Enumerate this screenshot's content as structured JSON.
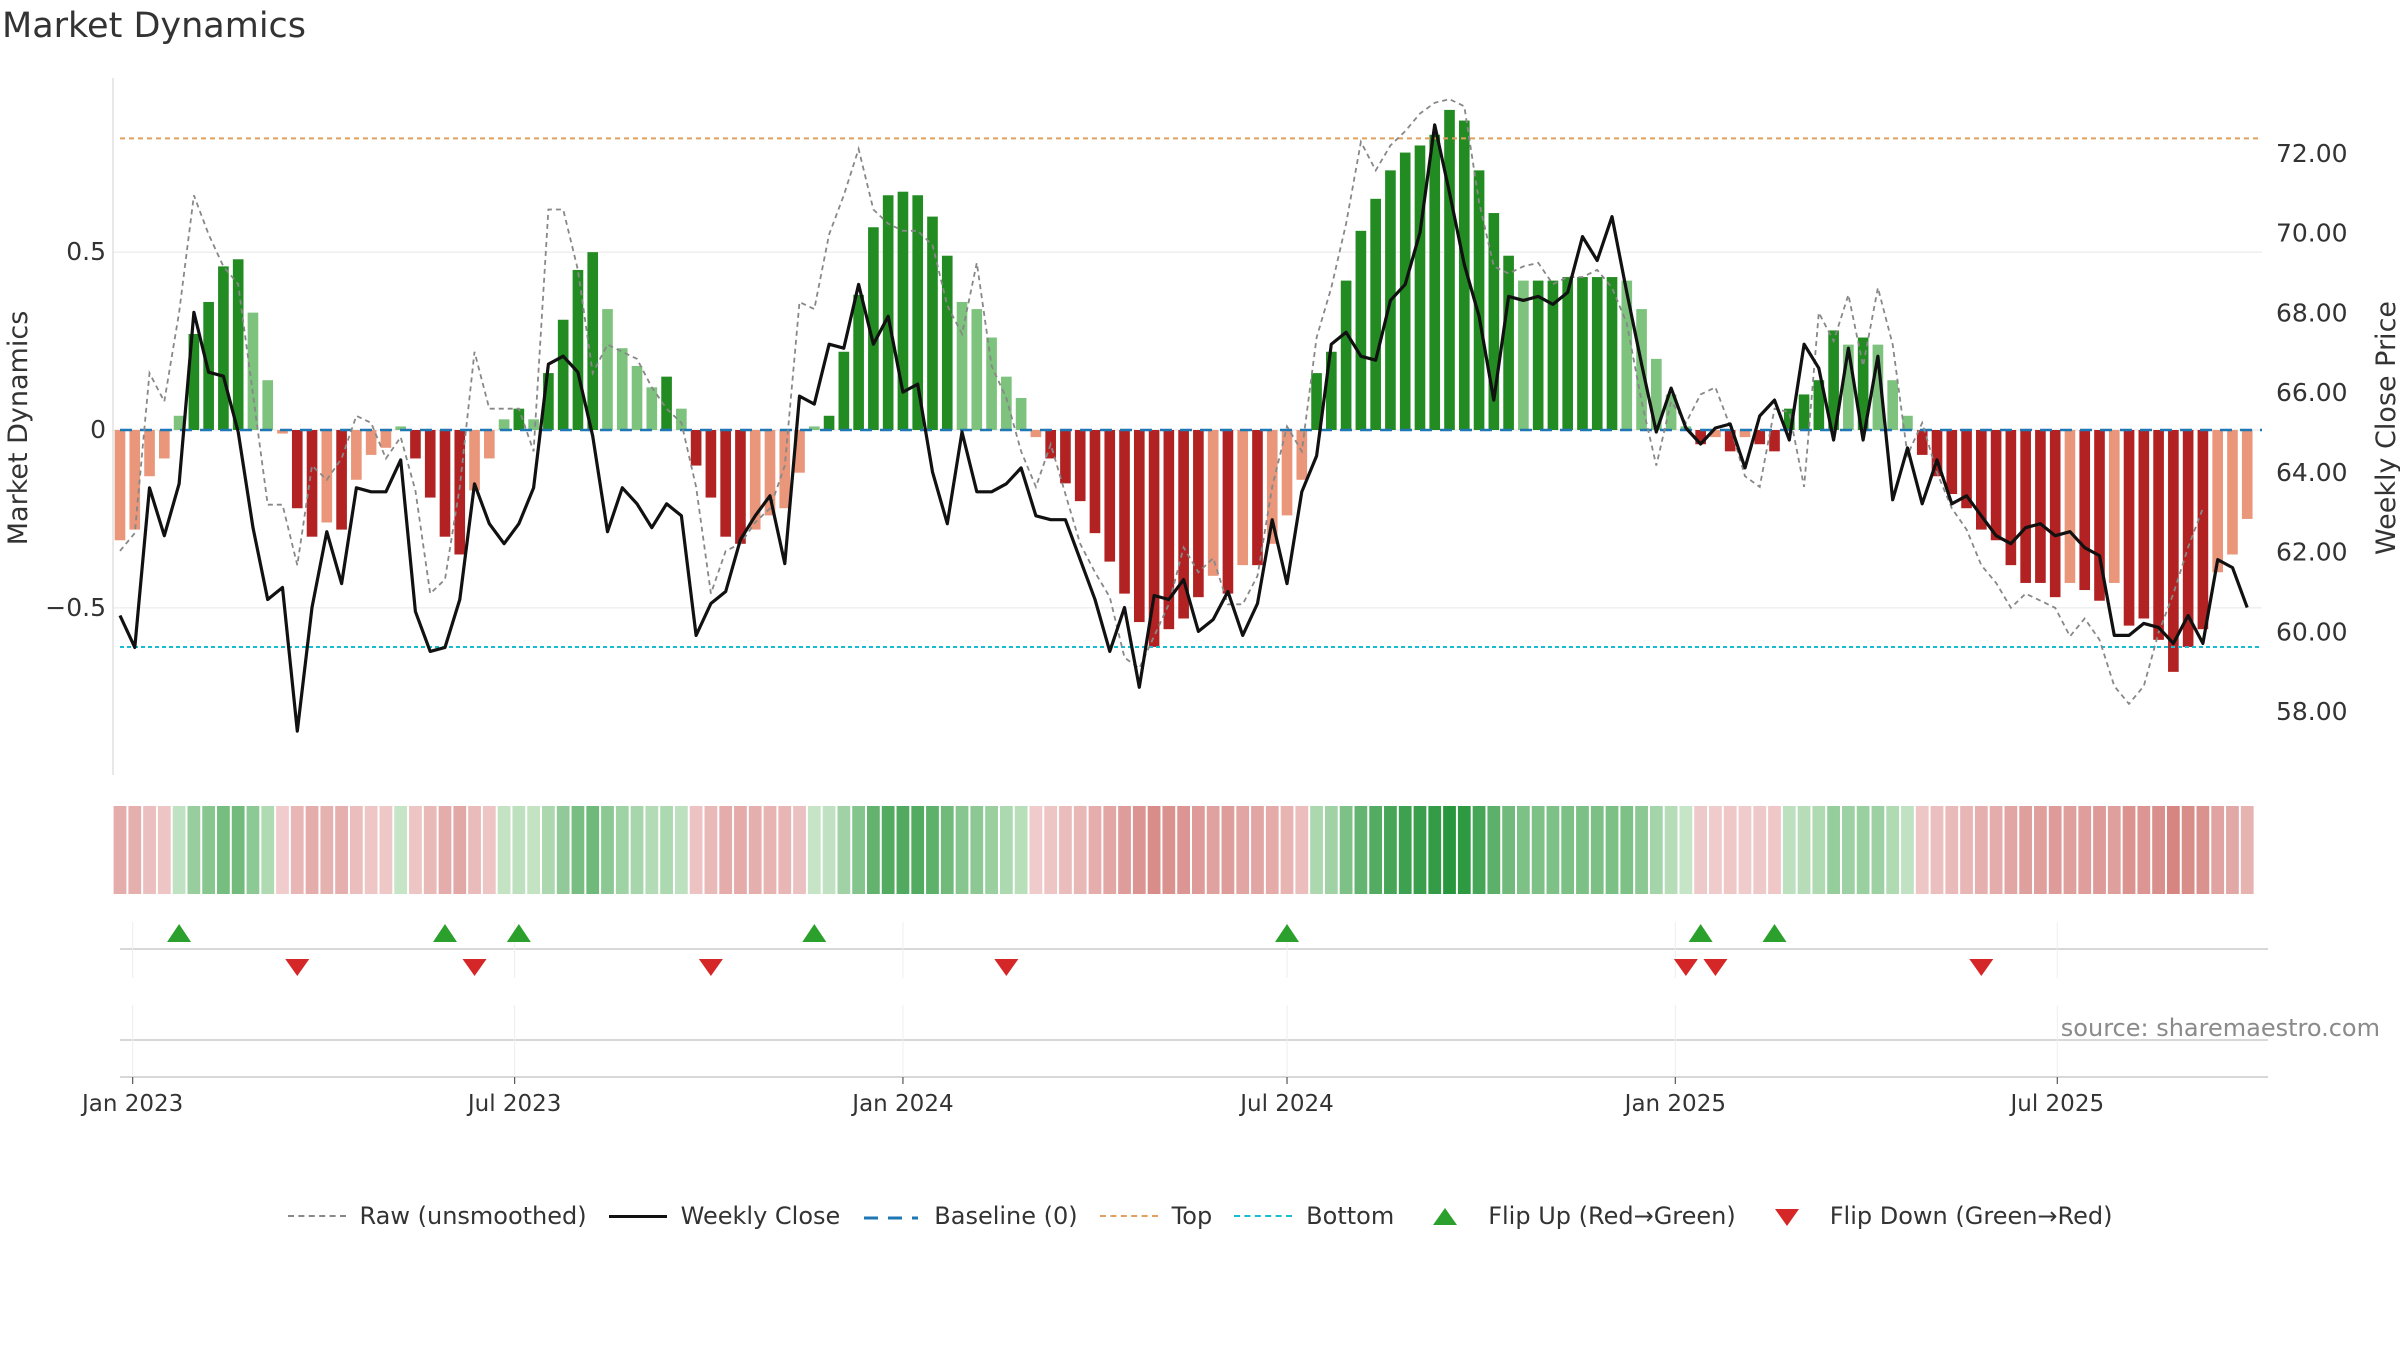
{
  "title": "Market Dynamics",
  "source": "source: sharemaestro.com",
  "colors": {
    "strong_green": "#228B22",
    "light_green": "#7DC27D",
    "strong_red": "#B22222",
    "light_red": "#E9967A",
    "raw_line": "#888888",
    "close_line": "#111111",
    "baseline": "#1f77b4",
    "top": "#e0a060",
    "bottom": "#17becf",
    "flip_up": "#2ca02c",
    "flip_down": "#d62728"
  },
  "legend": [
    {
      "key": "raw",
      "label": "Raw (unsmoothed)"
    },
    {
      "key": "close",
      "label": "Weekly Close"
    },
    {
      "key": "baseline",
      "label": "Baseline (0)"
    },
    {
      "key": "top",
      "label": "Top"
    },
    {
      "key": "bottom",
      "label": "Bottom"
    },
    {
      "key": "flip_up",
      "label": "Flip Up (Red→Green)"
    },
    {
      "key": "flip_down",
      "label": "Flip Down (Green→Red)"
    }
  ],
  "chart_data": {
    "type": "bar",
    "title": "Market Dynamics",
    "ylabel": "Market Dynamics",
    "y2label": "Weekly Close Price",
    "ylim": [
      -0.97,
      0.97
    ],
    "y2lim": [
      56.4,
      73.7
    ],
    "yticks": [
      0.5,
      0,
      -0.5
    ],
    "ytick_labels": [
      "0.5",
      "0",
      "−0.5"
    ],
    "y2ticks": [
      72,
      70,
      68,
      66,
      64,
      62,
      60,
      58
    ],
    "y2tick_labels": [
      "72.00",
      "70.00",
      "68.00",
      "66.00",
      "64.00",
      "62.00",
      "60.00",
      "58.00"
    ],
    "x_start": "2022-12-26",
    "x_end": "2025-10-06",
    "xticks": [
      "2023-01-01",
      "2023-07-01",
      "2024-01-01",
      "2024-07-01",
      "2025-01-01",
      "2025-07-01"
    ],
    "xtick_labels": [
      "Jan 2023",
      "Jul 2023",
      "Jan 2024",
      "Jul 2024",
      "Jan 2025",
      "Jul 2025"
    ],
    "top_level": 0.82,
    "bottom_level": -0.61,
    "baseline": 0,
    "grid": true,
    "legend_position": "bottom",
    "values": [
      -0.31,
      -0.28,
      -0.13,
      -0.08,
      0.04,
      0.27,
      0.36,
      0.46,
      0.48,
      0.33,
      0.14,
      -0.01,
      -0.22,
      -0.3,
      -0.26,
      -0.28,
      -0.14,
      -0.07,
      -0.05,
      0.01,
      -0.08,
      -0.19,
      -0.3,
      -0.35,
      -0.17,
      -0.08,
      0.03,
      0.06,
      0.03,
      0.16,
      0.31,
      0.45,
      0.5,
      0.34,
      0.23,
      0.18,
      0.12,
      0.15,
      0.06,
      -0.1,
      -0.19,
      -0.3,
      -0.32,
      -0.28,
      -0.24,
      -0.22,
      -0.12,
      0.01,
      0.04,
      0.22,
      0.38,
      0.57,
      0.66,
      0.67,
      0.66,
      0.6,
      0.49,
      0.36,
      0.34,
      0.26,
      0.15,
      0.09,
      -0.02,
      -0.08,
      -0.15,
      -0.2,
      -0.29,
      -0.37,
      -0.46,
      -0.54,
      -0.61,
      -0.56,
      -0.53,
      -0.47,
      -0.41,
      -0.46,
      -0.38,
      -0.38,
      -0.32,
      -0.24,
      -0.14,
      0.16,
      0.22,
      0.42,
      0.56,
      0.65,
      0.73,
      0.78,
      0.8,
      0.83,
      0.9,
      0.87,
      0.73,
      0.61,
      0.49,
      0.42,
      0.42,
      0.42,
      0.43,
      0.43,
      0.43,
      0.43,
      0.42,
      0.34,
      0.2,
      0.1,
      0.01,
      -0.04,
      -0.02,
      -0.06,
      -0.02,
      -0.04,
      -0.06,
      0.06,
      0.1,
      0.14,
      0.28,
      0.24,
      0.26,
      0.24,
      0.14,
      0.04,
      -0.07,
      -0.13,
      -0.18,
      -0.22,
      -0.28,
      -0.31,
      -0.38,
      -0.43,
      -0.43,
      -0.47,
      -0.43,
      -0.45,
      -0.48,
      -0.43,
      -0.55,
      -0.53,
      -0.59,
      -0.68,
      -0.61,
      -0.56,
      -0.4,
      -0.35,
      -0.25
    ],
    "raw": [
      -0.34,
      -0.29,
      0.16,
      0.08,
      0.33,
      0.66,
      0.55,
      0.46,
      0.41,
      0.1,
      -0.21,
      -0.21,
      -0.38,
      -0.1,
      -0.14,
      -0.08,
      0.04,
      0.02,
      -0.08,
      -0.02,
      -0.17,
      -0.46,
      -0.42,
      -0.16,
      0.22,
      0.06,
      0.06,
      0.06,
      -0.06,
      0.62,
      0.62,
      0.45,
      0.16,
      0.24,
      0.22,
      0.2,
      0.12,
      0.06,
      0.02,
      -0.16,
      -0.46,
      -0.34,
      -0.32,
      -0.26,
      -0.22,
      -0.1,
      0.36,
      0.34,
      0.55,
      0.66,
      0.79,
      0.62,
      0.58,
      0.56,
      0.56,
      0.52,
      0.35,
      0.27,
      0.47,
      0.18,
      0.09,
      -0.06,
      -0.16,
      -0.04,
      -0.18,
      -0.32,
      -0.4,
      -0.47,
      -0.64,
      -0.67,
      -0.58,
      -0.49,
      -0.33,
      -0.4,
      -0.36,
      -0.49,
      -0.49,
      -0.41,
      -0.16,
      0.01,
      -0.06,
      0.26,
      0.4,
      0.58,
      0.81,
      0.73,
      0.8,
      0.84,
      0.89,
      0.92,
      0.93,
      0.91,
      0.64,
      0.46,
      0.44,
      0.46,
      0.47,
      0.41,
      0.43,
      0.43,
      0.45,
      0.4,
      0.3,
      0.08,
      -0.1,
      0.08,
      0.02,
      0.1,
      0.12,
      0.01,
      -0.13,
      -0.16,
      0.06,
      0.05,
      -0.16,
      0.33,
      0.25,
      0.38,
      0.18,
      0.4,
      0.24,
      -0.07,
      0.02,
      -0.12,
      -0.22,
      -0.28,
      -0.38,
      -0.43,
      -0.5,
      -0.46,
      -0.48,
      -0.5,
      -0.58,
      -0.53,
      -0.59,
      -0.72,
      -0.77,
      -0.72,
      -0.57,
      -0.46,
      -0.33,
      -0.22
    ],
    "close": [
      60.4,
      59.6,
      63.6,
      62.4,
      63.7,
      68.0,
      66.5,
      66.4,
      65.0,
      62.6,
      60.8,
      61.1,
      57.5,
      60.6,
      62.5,
      61.2,
      63.6,
      63.5,
      63.5,
      64.3,
      60.5,
      59.5,
      59.6,
      60.8,
      63.7,
      62.7,
      62.2,
      62.7,
      63.6,
      66.7,
      66.9,
      66.5,
      64.9,
      62.5,
      63.6,
      63.2,
      62.6,
      63.2,
      62.9,
      59.9,
      60.7,
      61.0,
      62.3,
      62.9,
      63.4,
      61.7,
      65.9,
      65.7,
      67.2,
      67.1,
      68.7,
      67.2,
      67.9,
      66.0,
      66.2,
      64.0,
      62.7,
      65.0,
      63.5,
      63.5,
      63.7,
      64.1,
      62.9,
      62.8,
      62.8,
      61.8,
      60.8,
      59.5,
      60.6,
      58.6,
      60.9,
      60.8,
      61.3,
      60.0,
      60.3,
      61.0,
      59.9,
      60.7,
      62.8,
      61.2,
      63.5,
      64.4,
      67.2,
      67.5,
      66.9,
      66.8,
      68.3,
      68.7,
      70.0,
      72.7,
      71.0,
      69.2,
      67.9,
      65.8,
      68.4,
      68.3,
      68.4,
      68.2,
      68.5,
      69.9,
      69.3,
      70.4,
      68.5,
      66.7,
      65.0,
      66.1,
      65.1,
      64.7,
      65.1,
      65.2,
      64.1,
      65.4,
      65.8,
      64.8,
      67.2,
      66.6,
      64.8,
      67.1,
      64.8,
      66.9,
      63.3,
      64.6,
      63.2,
      64.3,
      63.2,
      63.4,
      62.9,
      62.4,
      62.2,
      62.6,
      62.7,
      62.4,
      62.5,
      62.1,
      61.9,
      59.9,
      59.9,
      60.2,
      60.1,
      59.7,
      60.4,
      59.7,
      61.8,
      61.6,
      60.6
    ]
  },
  "heat_strip": {
    "note": "one cell per week, shade tracks bar sign and magnitude"
  },
  "flip_markers": {
    "up": [
      "2023-01-23",
      "2023-05-29",
      "2023-07-03",
      "2023-11-20",
      "2024-07-01",
      "2025-01-13",
      "2025-02-17"
    ],
    "down": [
      "2023-03-20",
      "2023-06-12",
      "2023-10-02",
      "2024-02-19",
      "2025-01-06",
      "2025-01-20",
      "2025-05-26"
    ]
  }
}
